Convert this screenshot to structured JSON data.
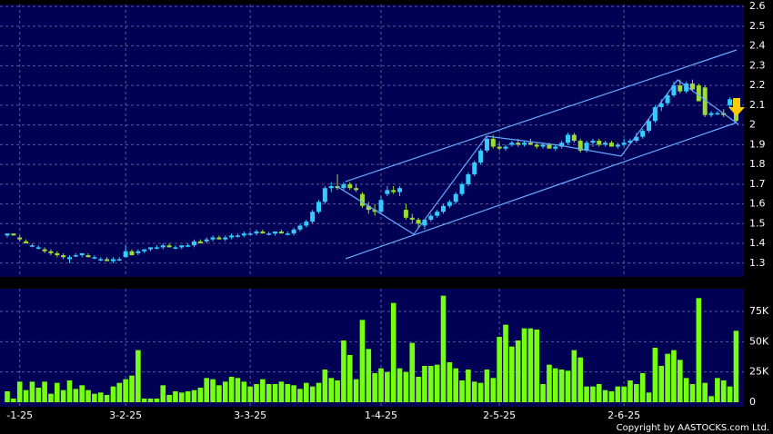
{
  "chart_data": {
    "type": "candlestick",
    "categories": [
      null,
      null,
      "-1-25",
      null,
      null,
      null,
      null,
      null,
      null,
      null,
      null,
      null,
      null,
      null,
      null,
      null,
      null,
      null,
      null,
      "3-2-25",
      null,
      null,
      null,
      null,
      null,
      null,
      null,
      null,
      null,
      null,
      null,
      null,
      null,
      null,
      null,
      null,
      null,
      null,
      null,
      "3-3-25",
      null,
      null,
      null,
      null,
      null,
      null,
      null,
      null,
      null,
      null,
      null,
      null,
      null,
      null,
      null,
      null,
      null,
      null,
      null,
      null,
      "1-4-25",
      null,
      null,
      null,
      null,
      null,
      null,
      null,
      null,
      null,
      null,
      null,
      null,
      null,
      null,
      null,
      null,
      null,
      null,
      "2-5-25",
      null,
      null,
      null,
      null,
      null,
      null,
      null,
      null,
      null,
      null,
      null,
      null,
      null,
      null,
      null,
      null,
      null,
      null,
      null,
      "2-6-25",
      null,
      null,
      null,
      null,
      null,
      null,
      null,
      null,
      null,
      null,
      null,
      null,
      null,
      null,
      null,
      null,
      null,
      null
    ],
    "ohlc": [
      [
        1.44,
        1.45,
        1.43,
        1.45
      ],
      [
        1.45,
        1.45,
        1.44,
        1.44
      ],
      [
        1.43,
        1.44,
        1.41,
        1.42
      ],
      [
        1.41,
        1.42,
        1.4,
        1.4
      ],
      [
        1.39,
        1.4,
        1.38,
        1.39
      ],
      [
        1.38,
        1.39,
        1.37,
        1.38
      ],
      [
        1.37,
        1.38,
        1.35,
        1.36
      ],
      [
        1.36,
        1.37,
        1.34,
        1.35
      ],
      [
        1.35,
        1.36,
        1.33,
        1.34
      ],
      [
        1.34,
        1.35,
        1.32,
        1.33
      ],
      [
        1.32,
        1.34,
        1.3,
        1.33
      ],
      [
        1.34,
        1.35,
        1.33,
        1.34
      ],
      [
        1.34,
        1.35,
        1.33,
        1.35
      ],
      [
        1.34,
        1.35,
        1.33,
        1.33
      ],
      [
        1.33,
        1.34,
        1.32,
        1.33
      ],
      [
        1.32,
        1.33,
        1.31,
        1.32
      ],
      [
        1.32,
        1.33,
        1.31,
        1.31
      ],
      [
        1.31,
        1.33,
        1.3,
        1.32
      ],
      [
        1.32,
        1.33,
        1.31,
        1.32
      ],
      [
        1.33,
        1.39,
        1.33,
        1.36
      ],
      [
        1.36,
        1.37,
        1.34,
        1.34
      ],
      [
        1.35,
        1.37,
        1.34,
        1.36
      ],
      [
        1.36,
        1.37,
        1.35,
        1.37
      ],
      [
        1.37,
        1.38,
        1.36,
        1.38
      ],
      [
        1.38,
        1.39,
        1.37,
        1.38
      ],
      [
        1.38,
        1.4,
        1.37,
        1.39
      ],
      [
        1.39,
        1.4,
        1.38,
        1.38
      ],
      [
        1.38,
        1.39,
        1.37,
        1.38
      ],
      [
        1.38,
        1.39,
        1.37,
        1.39
      ],
      [
        1.39,
        1.4,
        1.38,
        1.39
      ],
      [
        1.39,
        1.42,
        1.38,
        1.41
      ],
      [
        1.41,
        1.42,
        1.4,
        1.4
      ],
      [
        1.41,
        1.43,
        1.4,
        1.42
      ],
      [
        1.42,
        1.44,
        1.41,
        1.43
      ],
      [
        1.43,
        1.44,
        1.42,
        1.42
      ],
      [
        1.42,
        1.44,
        1.41,
        1.43
      ],
      [
        1.43,
        1.45,
        1.42,
        1.44
      ],
      [
        1.44,
        1.45,
        1.43,
        1.44
      ],
      [
        1.44,
        1.46,
        1.43,
        1.45
      ],
      [
        1.45,
        1.46,
        1.44,
        1.45
      ],
      [
        1.45,
        1.47,
        1.44,
        1.46
      ],
      [
        1.46,
        1.47,
        1.45,
        1.45
      ],
      [
        1.45,
        1.46,
        1.44,
        1.45
      ],
      [
        1.45,
        1.46,
        1.44,
        1.46
      ],
      [
        1.46,
        1.47,
        1.45,
        1.45
      ],
      [
        1.45,
        1.46,
        1.44,
        1.45
      ],
      [
        1.45,
        1.48,
        1.44,
        1.47
      ],
      [
        1.47,
        1.5,
        1.46,
        1.49
      ],
      [
        1.49,
        1.52,
        1.48,
        1.51
      ],
      [
        1.51,
        1.57,
        1.5,
        1.56
      ],
      [
        1.56,
        1.62,
        1.55,
        1.61
      ],
      [
        1.61,
        1.69,
        1.6,
        1.68
      ],
      [
        1.68,
        1.71,
        1.66,
        1.69
      ],
      [
        1.69,
        1.75,
        1.67,
        1.68
      ],
      [
        1.68,
        1.71,
        1.67,
        1.7
      ],
      [
        1.7,
        1.71,
        1.67,
        1.68
      ],
      [
        1.68,
        1.7,
        1.66,
        1.67
      ],
      [
        1.65,
        1.66,
        1.58,
        1.59
      ],
      [
        1.59,
        1.61,
        1.55,
        1.57
      ],
      [
        1.57,
        1.6,
        1.54,
        1.56
      ],
      [
        1.56,
        1.64,
        1.55,
        1.62
      ],
      [
        1.65,
        1.69,
        1.64,
        1.67
      ],
      [
        1.67,
        1.69,
        1.65,
        1.66
      ],
      [
        1.66,
        1.69,
        1.64,
        1.68
      ],
      [
        1.57,
        1.6,
        1.52,
        1.53
      ],
      [
        1.53,
        1.55,
        1.5,
        1.52
      ],
      [
        1.52,
        1.53,
        1.48,
        1.5
      ],
      [
        1.49,
        1.51,
        1.47,
        1.52
      ],
      [
        1.52,
        1.55,
        1.51,
        1.54
      ],
      [
        1.54,
        1.57,
        1.53,
        1.56
      ],
      [
        1.56,
        1.6,
        1.55,
        1.59
      ],
      [
        1.59,
        1.62,
        1.58,
        1.61
      ],
      [
        1.61,
        1.66,
        1.6,
        1.65
      ],
      [
        1.65,
        1.71,
        1.64,
        1.7
      ],
      [
        1.7,
        1.76,
        1.69,
        1.75
      ],
      [
        1.75,
        1.82,
        1.74,
        1.81
      ],
      [
        1.81,
        1.88,
        1.8,
        1.87
      ],
      [
        1.87,
        1.94,
        1.86,
        1.93
      ],
      [
        1.93,
        1.95,
        1.88,
        1.89
      ],
      [
        1.89,
        1.91,
        1.87,
        1.88
      ],
      [
        1.88,
        1.9,
        1.87,
        1.89
      ],
      [
        1.9,
        1.92,
        1.89,
        1.91
      ],
      [
        1.91,
        1.93,
        1.89,
        1.9
      ],
      [
        1.9,
        1.92,
        1.89,
        1.91
      ],
      [
        1.91,
        1.93,
        1.9,
        1.9
      ],
      [
        1.9,
        1.91,
        1.88,
        1.89
      ],
      [
        1.89,
        1.91,
        1.88,
        1.9
      ],
      [
        1.9,
        1.91,
        1.88,
        1.88
      ],
      [
        1.88,
        1.9,
        1.87,
        1.89
      ],
      [
        1.89,
        1.92,
        1.88,
        1.91
      ],
      [
        1.91,
        1.96,
        1.9,
        1.95
      ],
      [
        1.95,
        1.96,
        1.91,
        1.92
      ],
      [
        1.92,
        1.93,
        1.86,
        1.87
      ],
      [
        1.87,
        1.92,
        1.86,
        1.91
      ],
      [
        1.91,
        1.93,
        1.89,
        1.92
      ],
      [
        1.92,
        1.93,
        1.89,
        1.9
      ],
      [
        1.9,
        1.92,
        1.89,
        1.91
      ],
      [
        1.91,
        1.92,
        1.89,
        1.89
      ],
      [
        1.89,
        1.91,
        1.88,
        1.9
      ],
      [
        1.9,
        1.93,
        1.89,
        1.91
      ],
      [
        1.91,
        1.93,
        1.9,
        1.92
      ],
      [
        1.92,
        1.96,
        1.91,
        1.94
      ],
      [
        1.94,
        1.98,
        1.93,
        1.97
      ],
      [
        1.97,
        2.03,
        1.96,
        2.02
      ],
      [
        2.02,
        2.1,
        2.01,
        2.09
      ],
      [
        2.09,
        2.13,
        2.07,
        2.11
      ],
      [
        2.11,
        2.16,
        2.1,
        2.15
      ],
      [
        2.15,
        2.22,
        2.14,
        2.2
      ],
      [
        2.2,
        2.23,
        2.16,
        2.17
      ],
      [
        2.17,
        2.22,
        2.16,
        2.21
      ],
      [
        2.21,
        2.23,
        2.17,
        2.18
      ],
      [
        2.2,
        2.21,
        2.12,
        2.12
      ],
      [
        2.19,
        2.2,
        2.04,
        2.05
      ],
      [
        2.05,
        2.07,
        2.04,
        2.06
      ],
      [
        2.06,
        2.07,
        2.05,
        2.06
      ],
      [
        2.06,
        2.08,
        2.04,
        2.05
      ],
      [
        2.1,
        2.14,
        2.09,
        2.13
      ],
      [
        2.1,
        2.11,
        2.01,
        2.02
      ]
    ],
    "up_color": "#33ccff",
    "down_color": "#99dd33",
    "ylim": [
      1.23,
      2.61
    ],
    "yticks": [
      1.3,
      1.4,
      1.5,
      1.6,
      1.7,
      1.8,
      1.9,
      2,
      2.1,
      2.2,
      2.3,
      2.4,
      2.5,
      2.6
    ],
    "grid": true,
    "volume": {
      "values": [
        9000,
        3000,
        17000,
        10000,
        17000,
        12000,
        17000,
        7000,
        16000,
        10000,
        18000,
        11000,
        14000,
        10000,
        7000,
        8000,
        6000,
        13000,
        16000,
        19000,
        22000,
        43000,
        3000,
        3000,
        3000,
        14000,
        6000,
        9000,
        8000,
        9000,
        10000,
        12000,
        20000,
        19000,
        14000,
        17000,
        21000,
        20000,
        17000,
        13000,
        15000,
        19000,
        15000,
        15000,
        17000,
        15000,
        14000,
        11000,
        16000,
        13000,
        16000,
        27000,
        20000,
        18000,
        51000,
        39000,
        19000,
        68000,
        44000,
        24000,
        28000,
        25000,
        82000,
        28000,
        25000,
        49000,
        21000,
        30000,
        30000,
        31000,
        88000,
        33000,
        28000,
        18000,
        27000,
        17000,
        16000,
        27000,
        20000,
        54000,
        64000,
        46000,
        51000,
        61000,
        61000,
        60000,
        15000,
        31000,
        28000,
        27000,
        26000,
        43000,
        37000,
        13000,
        13000,
        15000,
        10000,
        9000,
        13000,
        13000,
        18000,
        15000,
        24000,
        8000,
        45000,
        30000,
        40000,
        43000,
        35000,
        20000,
        15000,
        86000,
        16000,
        5000,
        20000,
        18000,
        13000,
        59000
      ],
      "color": "#77ff11",
      "ylim": [
        -3750,
        93750
      ],
      "yticks": [
        0,
        {
          "value": 25000,
          "label": "25K"
        },
        {
          "value": 50000,
          "label": "50K"
        },
        {
          "value": 75000,
          "label": "75K"
        }
      ]
    },
    "copyright": "Copyright by AASTOCKS.com Ltd."
  }
}
